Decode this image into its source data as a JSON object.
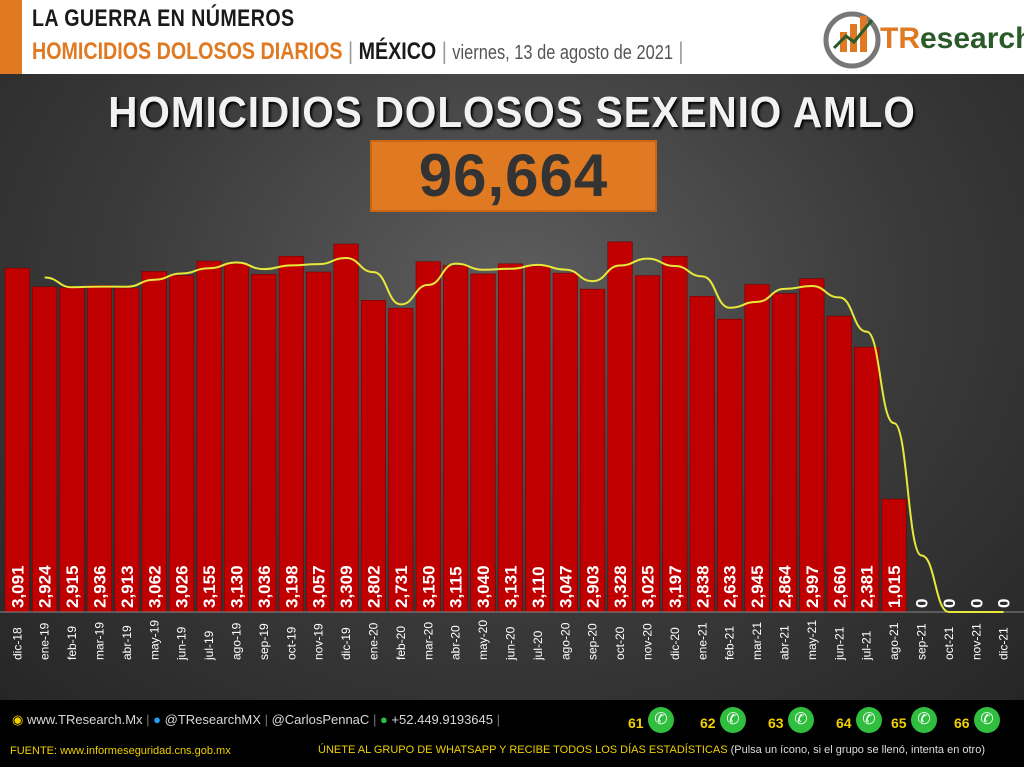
{
  "header": {
    "line1": "LA GUERRA EN NÚMEROS",
    "subtitle_orange": "HOMICIDIOS DOLOSOS DIARIOS",
    "sep1": "|",
    "region": "MÉXICO",
    "sep2": "|",
    "date": "viernes, 13 de agosto de 2021",
    "sep3": "|",
    "logo_text_t": "TR",
    "logo_text_rest": "esearch"
  },
  "main_title": "HOMICIDIOS DOLOSOS SEXENIO AMLO",
  "total": "96,664",
  "chart_data": {
    "type": "bar",
    "categories": [
      "dic-18",
      "ene-19",
      "feb-19",
      "mar-19",
      "abr-19",
      "may-19",
      "jun-19",
      "jul-19",
      "ago-19",
      "sep-19",
      "oct-19",
      "nov-19",
      "dic-19",
      "ene-20",
      "feb-20",
      "mar-20",
      "abr-20",
      "may-20",
      "jun-20",
      "jul-20",
      "ago-20",
      "sep-20",
      "oct-20",
      "nov-20",
      "dic-20",
      "ene-21",
      "feb-21",
      "mar-21",
      "abr-21",
      "may-21",
      "jun-21",
      "jul-21",
      "ago-21",
      "sep-21",
      "oct-21",
      "nov-21",
      "dic-21"
    ],
    "values": [
      3091,
      2924,
      2915,
      2936,
      2913,
      3062,
      3026,
      3155,
      3130,
      3036,
      3198,
      3057,
      3309,
      2802,
      2731,
      3150,
      3115,
      3040,
      3131,
      3110,
      3047,
      2903,
      3328,
      3025,
      3197,
      2838,
      2633,
      2945,
      2864,
      2997,
      2660,
      2381,
      1015,
      0,
      0,
      0,
      0
    ],
    "labels": [
      "3,091",
      "2,924",
      "2,915",
      "2,936",
      "2,913",
      "3,062",
      "3,026",
      "3,155",
      "3,130",
      "3,036",
      "3,198",
      "3,057",
      "3,309",
      "2,802",
      "2,731",
      "3,150",
      "3,115",
      "3,040",
      "3,131",
      "3,110",
      "3,047",
      "2,903",
      "3,328",
      "3,025",
      "3,197",
      "2,838",
      "2,633",
      "2,945",
      "2,864",
      "2,997",
      "2,660",
      "2,381",
      "1,015",
      "0",
      "0",
      "0",
      "0"
    ],
    "trend": {
      "type": "line",
      "color": "#e8e83a",
      "x_start_index": 1,
      "values": [
        3008,
        2920,
        2926,
        2925,
        2988,
        3044,
        3091,
        3143,
        3083,
        3117,
        3128,
        3183,
        3056,
        2766,
        2941,
        3133,
        3078,
        3086,
        3121,
        3079,
        2975,
        3116,
        3177,
        3111,
        3018,
        2736,
        2789,
        2905,
        2931,
        2829,
        2521,
        1698,
        508,
        0,
        0,
        0
      ]
    },
    "ylim": [
      0,
      3500
    ],
    "bar_color": "#c00000",
    "grid": false
  },
  "footer": {
    "web": "www.TResearch.Mx",
    "twitter": "@TResearchMX",
    "author": "@CarlosPennaC",
    "phone": "+52.449.9193645",
    "source": "FUENTE: www.informeseguridad.cns.gob.mx",
    "cta": "ÚNETE AL GRUPO DE WHATSAPP Y RECIBE TODOS LOS DÍAS ESTADÍSTICAS",
    "cta_note": "(Pulsa un ícono, si el grupo se llenó, intenta en otro)",
    "groups": [
      "61",
      "62",
      "63",
      "64",
      "65",
      "66"
    ]
  }
}
